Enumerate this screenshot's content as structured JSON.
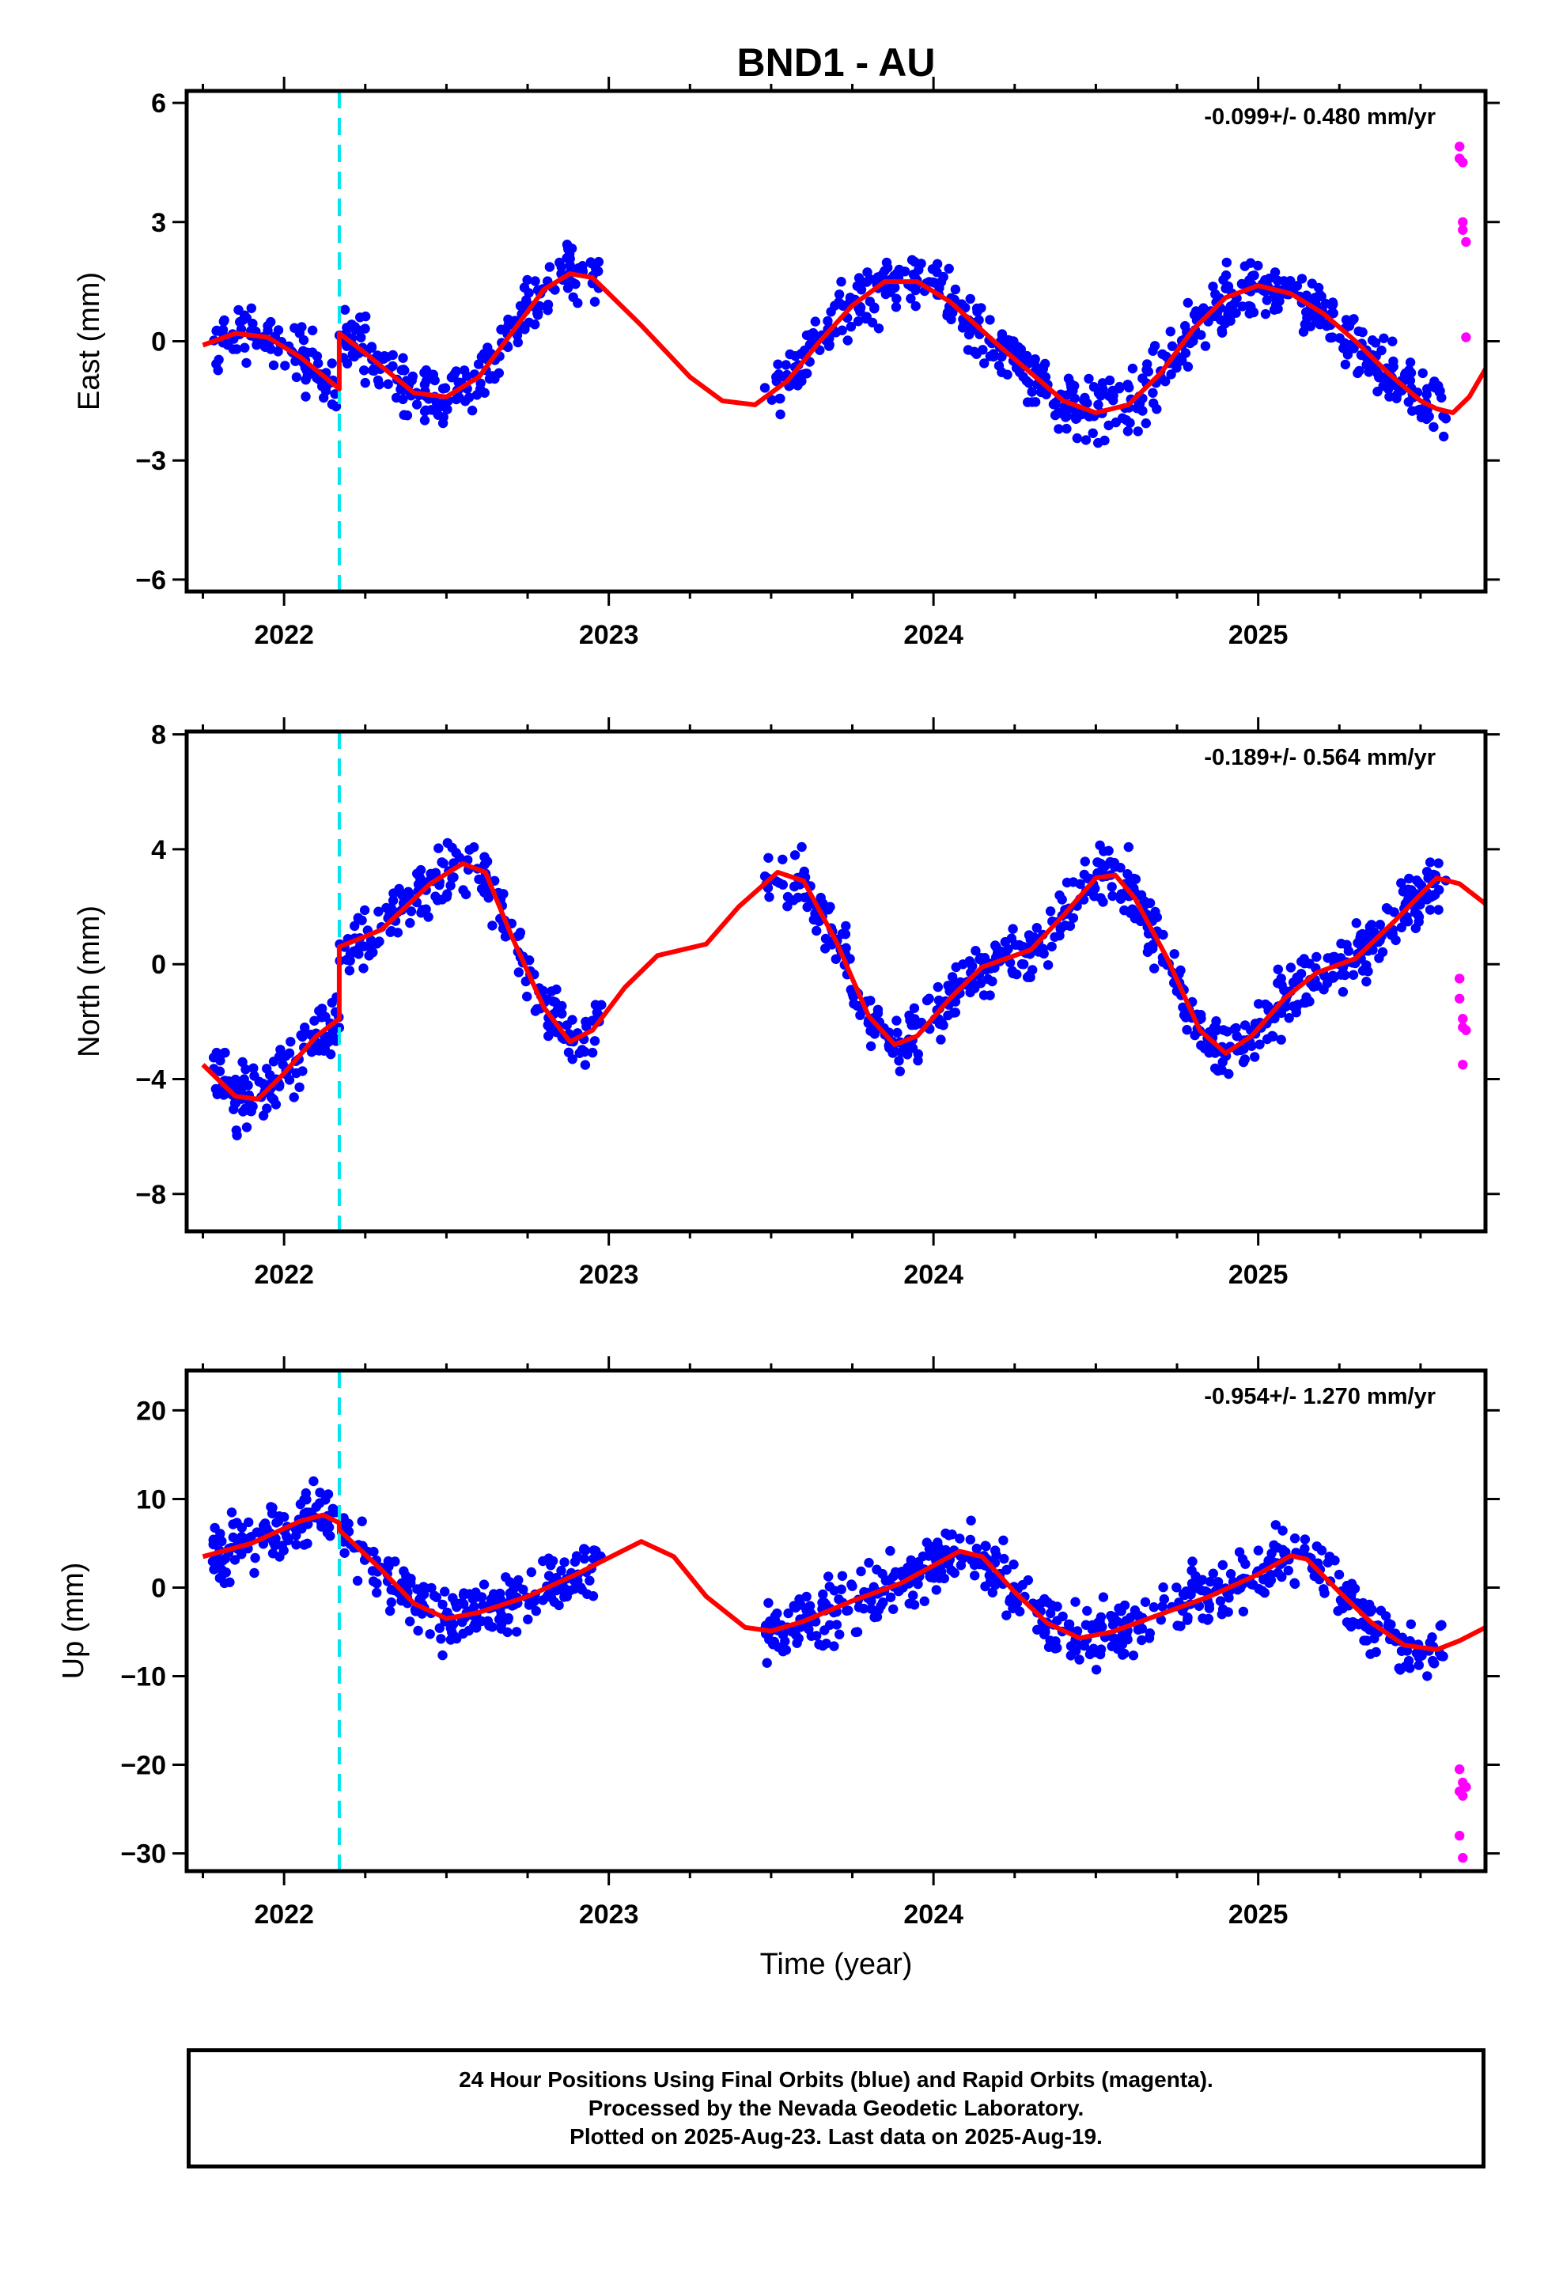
{
  "page": {
    "title": "BND1 - AU",
    "footer_lines": [
      "24 Hour Positions Using Final Orbits (blue) and Rapid Orbits (magenta).",
      "Processed by the Nevada Geodetic Laboratory.",
      "Plotted on 2025-Aug-23. Last data on 2025-Aug-19."
    ]
  },
  "colors": {
    "final_orbits": "#0000ff",
    "rapid_orbits": "#ff00ff",
    "model_fit": "#ff0000",
    "event_marker": "#00e5ee",
    "frame": "#000000"
  },
  "chart_data": [
    {
      "type": "scatter",
      "component": "east",
      "ylabel": "East (mm)",
      "xlabel": "",
      "xlim": [
        2021.7,
        2025.7
      ],
      "ylim": [
        -6.3,
        6.3
      ],
      "x_ticks": [
        2022,
        2023,
        2024,
        2025
      ],
      "y_ticks": [
        6,
        3,
        0,
        -3,
        -6
      ],
      "y_tick_labels": [
        "6",
        "3",
        "0",
        "−3",
        "−6"
      ],
      "rate_label": "-0.099+/- 0.480 mm/yr",
      "event_line_x": 2022.17,
      "gap": [
        2022.98,
        2023.48
      ],
      "data_x_range": [
        2021.78,
        2025.58
      ],
      "model_fit": [
        [
          2021.75,
          -0.1
        ],
        [
          2021.85,
          0.2
        ],
        [
          2021.95,
          0.1
        ],
        [
          2022.05,
          -0.4
        ],
        [
          2022.17,
          -1.2
        ],
        [
          2022.17,
          0.2
        ],
        [
          2022.25,
          -0.3
        ],
        [
          2022.4,
          -1.3
        ],
        [
          2022.5,
          -1.4
        ],
        [
          2022.6,
          -0.9
        ],
        [
          2022.7,
          0.2
        ],
        [
          2022.8,
          1.3
        ],
        [
          2022.88,
          1.7
        ],
        [
          2022.95,
          1.6
        ],
        [
          2023.1,
          0.4
        ],
        [
          2023.25,
          -0.9
        ],
        [
          2023.35,
          -1.5
        ],
        [
          2023.45,
          -1.6
        ],
        [
          2023.55,
          -1.0
        ],
        [
          2023.65,
          0.0
        ],
        [
          2023.75,
          0.9
        ],
        [
          2023.85,
          1.5
        ],
        [
          2023.95,
          1.5
        ],
        [
          2024.05,
          1.0
        ],
        [
          2024.2,
          -0.1
        ],
        [
          2024.3,
          -0.8
        ],
        [
          2024.4,
          -1.5
        ],
        [
          2024.5,
          -1.8
        ],
        [
          2024.6,
          -1.6
        ],
        [
          2024.7,
          -0.8
        ],
        [
          2024.8,
          0.3
        ],
        [
          2024.9,
          1.1
        ],
        [
          2025.0,
          1.4
        ],
        [
          2025.1,
          1.2
        ],
        [
          2025.2,
          0.7
        ],
        [
          2025.3,
          0.0
        ],
        [
          2025.4,
          -0.8
        ],
        [
          2025.5,
          -1.5
        ],
        [
          2025.55,
          -1.7
        ],
        [
          2025.6,
          -1.8
        ],
        [
          2025.65,
          -1.4
        ],
        [
          2025.7,
          -0.7
        ]
      ],
      "rapid_points": [
        [
          2025.62,
          4.9
        ],
        [
          2025.62,
          4.6
        ],
        [
          2025.63,
          4.5
        ],
        [
          2025.63,
          3.0
        ],
        [
          2025.63,
          2.8
        ],
        [
          2025.64,
          2.5
        ],
        [
          2025.64,
          0.1
        ]
      ]
    },
    {
      "type": "scatter",
      "component": "north",
      "ylabel": "North (mm)",
      "xlabel": "",
      "xlim": [
        2021.7,
        2025.7
      ],
      "ylim": [
        -9.3,
        8.1
      ],
      "x_ticks": [
        2022,
        2023,
        2024,
        2025
      ],
      "y_ticks": [
        8,
        4,
        0,
        -4,
        -8
      ],
      "y_tick_labels": [
        "8",
        "4",
        "0",
        "−4",
        "−8"
      ],
      "rate_label": "-0.189+/- 0.564 mm/yr",
      "event_line_x": 2022.17,
      "gap": [
        2022.98,
        2023.48
      ],
      "data_x_range": [
        2021.78,
        2025.58
      ],
      "model_fit": [
        [
          2021.75,
          -3.5
        ],
        [
          2021.85,
          -4.6
        ],
        [
          2021.92,
          -4.7
        ],
        [
          2022.0,
          -3.8
        ],
        [
          2022.1,
          -2.5
        ],
        [
          2022.17,
          -1.9
        ],
        [
          2022.17,
          0.6
        ],
        [
          2022.3,
          1.2
        ],
        [
          2022.45,
          2.8
        ],
        [
          2022.55,
          3.5
        ],
        [
          2022.62,
          3.2
        ],
        [
          2022.7,
          1.0
        ],
        [
          2022.8,
          -1.5
        ],
        [
          2022.88,
          -2.7
        ],
        [
          2022.95,
          -2.3
        ],
        [
          2023.05,
          -0.8
        ],
        [
          2023.15,
          0.3
        ],
        [
          2023.3,
          0.7
        ],
        [
          2023.4,
          2.0
        ],
        [
          2023.52,
          3.2
        ],
        [
          2023.6,
          2.9
        ],
        [
          2023.7,
          0.8
        ],
        [
          2023.8,
          -1.8
        ],
        [
          2023.88,
          -2.8
        ],
        [
          2023.95,
          -2.5
        ],
        [
          2024.05,
          -1.2
        ],
        [
          2024.15,
          -0.1
        ],
        [
          2024.3,
          0.5
        ],
        [
          2024.4,
          1.7
        ],
        [
          2024.5,
          3.0
        ],
        [
          2024.56,
          3.1
        ],
        [
          2024.62,
          2.3
        ],
        [
          2024.72,
          0.2
        ],
        [
          2024.82,
          -2.3
        ],
        [
          2024.9,
          -3.1
        ],
        [
          2024.98,
          -2.5
        ],
        [
          2025.08,
          -1.2
        ],
        [
          2025.18,
          -0.3
        ],
        [
          2025.3,
          0.2
        ],
        [
          2025.42,
          1.5
        ],
        [
          2025.55,
          3.0
        ],
        [
          2025.62,
          2.8
        ],
        [
          2025.7,
          2.1
        ]
      ],
      "rapid_points": [
        [
          2025.62,
          -0.5
        ],
        [
          2025.62,
          -1.2
        ],
        [
          2025.63,
          -1.9
        ],
        [
          2025.63,
          -2.2
        ],
        [
          2025.64,
          -2.3
        ],
        [
          2025.63,
          -3.5
        ]
      ]
    },
    {
      "type": "scatter",
      "component": "up",
      "ylabel": "Up (mm)",
      "xlabel": "Time (year)",
      "xlim": [
        2021.7,
        2025.7
      ],
      "ylim": [
        -32,
        24.5
      ],
      "x_ticks": [
        2022,
        2023,
        2024,
        2025
      ],
      "y_ticks": [
        20,
        10,
        0,
        -10,
        -20,
        -30
      ],
      "y_tick_labels": [
        "20",
        "10",
        "0",
        "−10",
        "−20",
        "−30"
      ],
      "rate_label": "-0.954+/- 1.270 mm/yr",
      "event_line_x": 2022.17,
      "gap": [
        2022.98,
        2023.48
      ],
      "data_x_range": [
        2021.78,
        2025.58
      ],
      "model_fit": [
        [
          2021.75,
          3.5
        ],
        [
          2021.9,
          5.0
        ],
        [
          2022.05,
          7.5
        ],
        [
          2022.12,
          8.2
        ],
        [
          2022.17,
          7.3
        ],
        [
          2022.17,
          6.5
        ],
        [
          2022.3,
          2.0
        ],
        [
          2022.4,
          -1.8
        ],
        [
          2022.5,
          -3.5
        ],
        [
          2022.6,
          -2.8
        ],
        [
          2022.75,
          -1.0
        ],
        [
          2022.9,
          1.5
        ],
        [
          2022.98,
          3.0
        ],
        [
          2023.1,
          5.2
        ],
        [
          2023.2,
          3.5
        ],
        [
          2023.3,
          -1.0
        ],
        [
          2023.42,
          -4.5
        ],
        [
          2023.5,
          -4.9
        ],
        [
          2023.6,
          -3.8
        ],
        [
          2023.75,
          -1.5
        ],
        [
          2023.9,
          0.5
        ],
        [
          2024.0,
          2.5
        ],
        [
          2024.08,
          4.1
        ],
        [
          2024.15,
          3.5
        ],
        [
          2024.25,
          -0.5
        ],
        [
          2024.35,
          -4.0
        ],
        [
          2024.45,
          -5.7
        ],
        [
          2024.55,
          -5.0
        ],
        [
          2024.7,
          -3.0
        ],
        [
          2024.85,
          -1.0
        ],
        [
          2025.0,
          1.5
        ],
        [
          2025.1,
          3.6
        ],
        [
          2025.15,
          3.2
        ],
        [
          2025.25,
          -0.5
        ],
        [
          2025.35,
          -4.0
        ],
        [
          2025.45,
          -6.5
        ],
        [
          2025.55,
          -7.0
        ],
        [
          2025.62,
          -6.0
        ],
        [
          2025.7,
          -4.5
        ]
      ],
      "rapid_points": [
        [
          2025.62,
          -20.5
        ],
        [
          2025.63,
          -22.0
        ],
        [
          2025.62,
          -23.0
        ],
        [
          2025.63,
          -23.5
        ],
        [
          2025.64,
          -22.5
        ],
        [
          2025.62,
          -28.0
        ],
        [
          2025.63,
          -30.5
        ]
      ]
    }
  ]
}
